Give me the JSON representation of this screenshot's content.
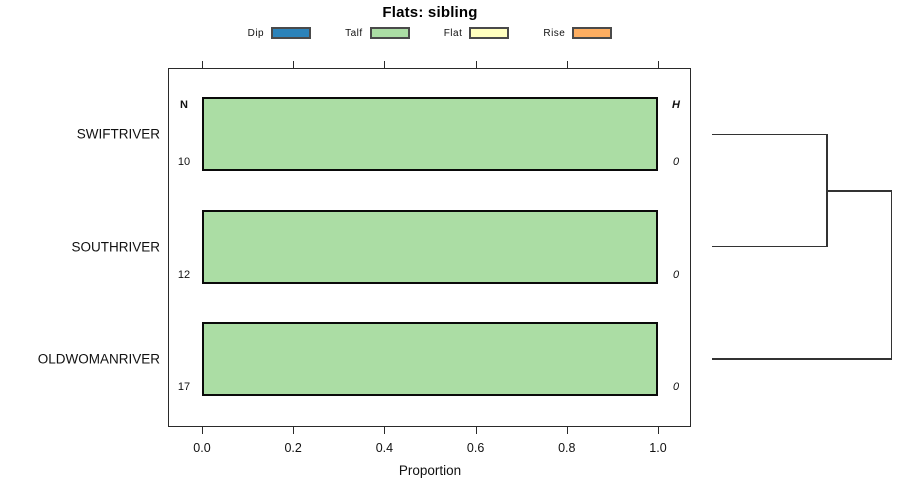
{
  "title": "Flats: sibling",
  "legend": {
    "items": [
      {
        "label": "Dip",
        "color": "#2B83BA"
      },
      {
        "label": "Talf",
        "color": "#ABDDA4"
      },
      {
        "label": "Flat",
        "color": "#FFFFBF"
      },
      {
        "label": "Rise",
        "color": "#FDAE61"
      }
    ]
  },
  "axis": {
    "xlabel": "Proportion",
    "ticks": [
      "0.0",
      "0.2",
      "0.4",
      "0.6",
      "0.8",
      "1.0"
    ]
  },
  "column_headers": {
    "left": "N",
    "right": "H"
  },
  "rows": [
    {
      "label": "SWIFTRIVER",
      "n": "10",
      "h": "0"
    },
    {
      "label": "SOUTHRIVER",
      "n": "12",
      "h": "0"
    },
    {
      "label": "OLDWOMANRIVER",
      "n": "17",
      "h": "0"
    }
  ],
  "chart_data": {
    "type": "bar",
    "orientation": "horizontal-stacked",
    "title": "Flats: sibling",
    "xlabel": "Proportion",
    "xlim": [
      0.0,
      1.0
    ],
    "x_ticks": [
      0.0,
      0.2,
      0.4,
      0.6,
      0.8,
      1.0
    ],
    "grid": false,
    "legend_position": "top",
    "categories": [
      "SWIFTRIVER",
      "SOUTHRIVER",
      "OLDWOMANRIVER"
    ],
    "n_counts": [
      10,
      12,
      17
    ],
    "h_entropy": [
      0,
      0,
      0
    ],
    "series": [
      {
        "name": "Dip",
        "color": "#2B83BA",
        "values": [
          0,
          0,
          0
        ]
      },
      {
        "name": "Talf",
        "color": "#ABDDA4",
        "values": [
          1.0,
          1.0,
          1.0
        ]
      },
      {
        "name": "Flat",
        "color": "#FFFFBF",
        "values": [
          0,
          0,
          0
        ]
      },
      {
        "name": "Rise",
        "color": "#FDAE61",
        "values": [
          0,
          0,
          0
        ]
      }
    ],
    "dendrogram": {
      "position": "right",
      "leaf_order": [
        "SWIFTRIVER",
        "SOUTHRIVER",
        "OLDWOMANRIVER"
      ],
      "merges": [
        {
          "members": [
            "SWIFTRIVER",
            "SOUTHRIVER"
          ],
          "relative_height": 0.64
        },
        {
          "members": [
            "(SWIFTRIVER,SOUTHRIVER)",
            "OLDWOMANRIVER"
          ],
          "relative_height": 1.0
        }
      ]
    }
  }
}
